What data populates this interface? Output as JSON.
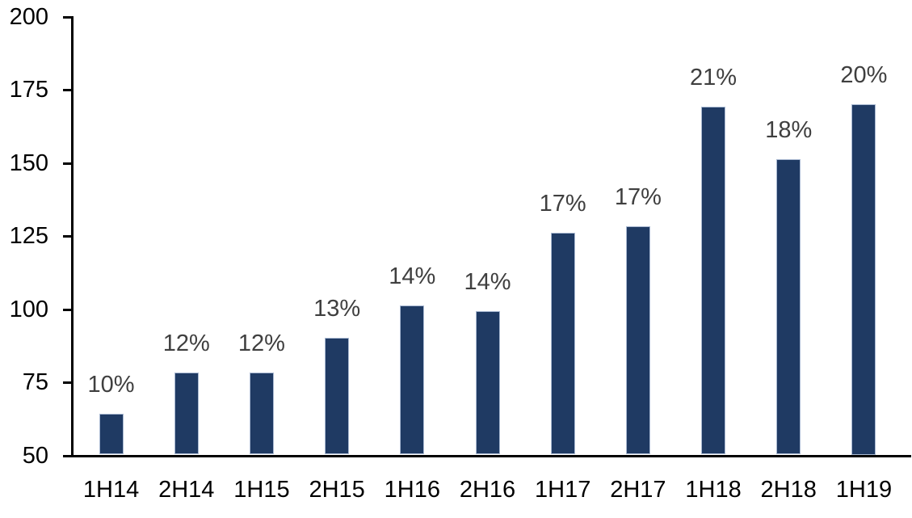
{
  "chart_data": {
    "type": "bar",
    "title": "",
    "xlabel": "",
    "ylabel": "",
    "categories": [
      "1H14",
      "2H14",
      "1H15",
      "2H15",
      "1H16",
      "2H16",
      "1H17",
      "2H17",
      "1H18",
      "2H18",
      "1H19"
    ],
    "values": [
      64,
      78,
      78,
      90,
      101,
      99,
      126,
      128,
      169,
      151,
      170
    ],
    "bar_labels": [
      "10%",
      "12%",
      "12%",
      "13%",
      "14%",
      "14%",
      "17%",
      "17%",
      "21%",
      "18%",
      "20%"
    ],
    "ylim": [
      50,
      200
    ],
    "yticks": [
      50,
      75,
      100,
      125,
      150,
      175,
      200
    ],
    "grid": false,
    "legend": false,
    "colors": {
      "bar_fill": "#1F3A63",
      "bar_border": "#A9B9D2",
      "value_label": "#3F3F3F",
      "axis": "#000000",
      "tick_label": "#000000",
      "background": "#FFFFFF"
    }
  }
}
